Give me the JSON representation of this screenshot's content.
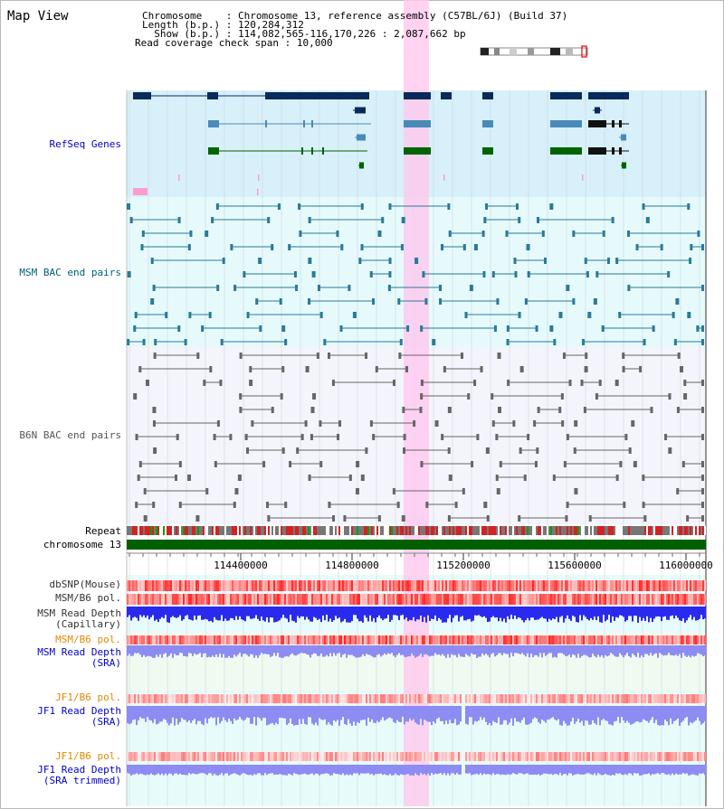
{
  "page": {
    "title": "Map View"
  },
  "header": {
    "lines": [
      {
        "key": "Chromosome    ",
        "value": "Chromosome 13, reference assembly (C57BL/6J) (Build 37)"
      },
      {
        "key": "Length (b.p.) ",
        "value": "120,284,312"
      },
      {
        "key": "  Show (b.p.) ",
        "value": "114,082,565-116,170,226 : 2,087,662 bp"
      },
      {
        "key": "Read coverage check span",
        "value": "10,000"
      }
    ]
  },
  "tracks": [
    {
      "id": "refseq",
      "label": "RefSeq Genes",
      "color": "#0000cc"
    },
    {
      "id": "msm_bac",
      "label": "MSM BAC end pairs",
      "color": "#006080"
    },
    {
      "id": "b6n_bac",
      "label": "B6N BAC end pairs",
      "color": "#555555"
    },
    {
      "id": "repeat",
      "label": "Repeat",
      "color": "#000000"
    },
    {
      "id": "chrom",
      "label": "chromosome 13",
      "color": "#000000"
    },
    {
      "id": "dbsnp",
      "label": "dbSNP(Mouse)",
      "color": "#333333"
    },
    {
      "id": "msm_b6_pol",
      "label": "MSM/B6 pol.",
      "color": "#333333"
    },
    {
      "id": "msm_rd_cap",
      "label": "MSM Read Depth",
      "sub": "(Capillary)",
      "color": "#333333"
    },
    {
      "id": "msm_b6_pol2",
      "label": "MSM/B6 pol.",
      "color": "#e08a00"
    },
    {
      "id": "msm_rd_sra",
      "label": "MSM Read Depth",
      "sub": "(SRA)",
      "color": "#0000cc"
    },
    {
      "id": "jf1_b6_pol",
      "label": "JF1/B6 pol.",
      "color": "#e08a00"
    },
    {
      "id": "jf1_rd_sra",
      "label": "JF1 Read Depth",
      "sub": "(SRA)",
      "color": "#0000cc"
    },
    {
      "id": "jf1_b6_pol2",
      "label": "JF1/B6 pol.",
      "color": "#e08a00"
    },
    {
      "id": "jf1_rd_trim",
      "label": "JF1 Read Depth",
      "sub": "(SRA trimmed)",
      "color": "#0000cc"
    }
  ],
  "axis": {
    "ticks": [
      "114400000",
      "114800000",
      "115200000",
      "115600000",
      "116000000"
    ]
  },
  "colors": {
    "refseq_bg": "#d8f0fa",
    "msm_bg": "#e6fafc",
    "b6n_bg": "#f4f4fc",
    "lower_bg": "#e8fbfb",
    "sra_bg": "#f0faf0",
    "highlight": "#ffc8ee",
    "chromosome": "#006000",
    "snp_red": "#ff4a4a",
    "depth_blue": "#2a2aee",
    "depth_light": "#8c8cf2"
  }
}
